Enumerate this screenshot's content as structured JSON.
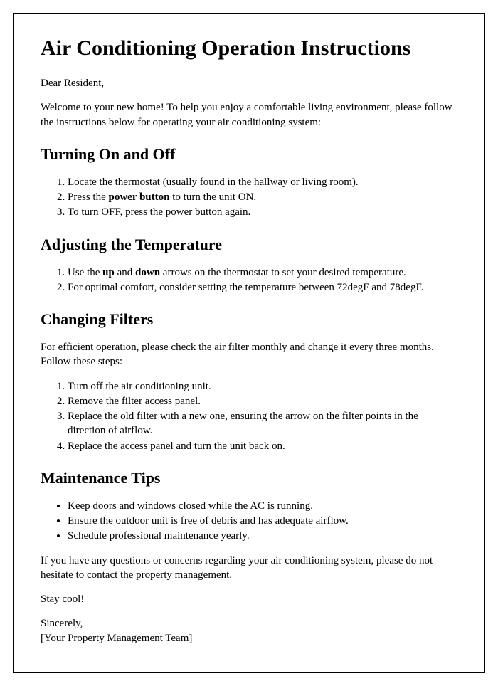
{
  "title": "Air Conditioning Operation Instructions",
  "greeting": "Dear Resident,",
  "intro": "Welcome to your new home! To help you enjoy a comfortable living environment, please follow the instructions below for operating your air conditioning system:",
  "section1": {
    "heading": "Turning On and Off",
    "step1_pre": "Locate the thermostat (usually found in the hallway or living room).",
    "step2_pre": "Press the ",
    "step2_bold": "power button",
    "step2_post": " to turn the unit ON.",
    "step3": "To turn OFF, press the power button again."
  },
  "section2": {
    "heading": "Adjusting the Temperature",
    "step1_pre": "Use the ",
    "step1_bold1": "up",
    "step1_mid": " and ",
    "step1_bold2": "down",
    "step1_post": " arrows on the thermostat to set your desired temperature.",
    "step2": "For optimal comfort, consider setting the temperature between 72degF and 78degF."
  },
  "section3": {
    "heading": "Changing Filters",
    "intro": "For efficient operation, please check the air filter monthly and change it every three months. Follow these steps:",
    "step1": "Turn off the air conditioning unit.",
    "step2": "Remove the filter access panel.",
    "step3": "Replace the old filter with a new one, ensuring the arrow on the filter points in the direction of airflow.",
    "step4": "Replace the access panel and turn the unit back on."
  },
  "section4": {
    "heading": "Maintenance Tips",
    "tip1": "Keep doors and windows closed while the AC is running.",
    "tip2": "Ensure the outdoor unit is free of debris and has adequate airflow.",
    "tip3": "Schedule professional maintenance yearly."
  },
  "closing": "If you have any questions or concerns regarding your air conditioning system, please do not hesitate to contact the property management.",
  "staycool": "Stay cool!",
  "sincerely": "Sincerely,",
  "signature": "[Your Property Management Team]"
}
